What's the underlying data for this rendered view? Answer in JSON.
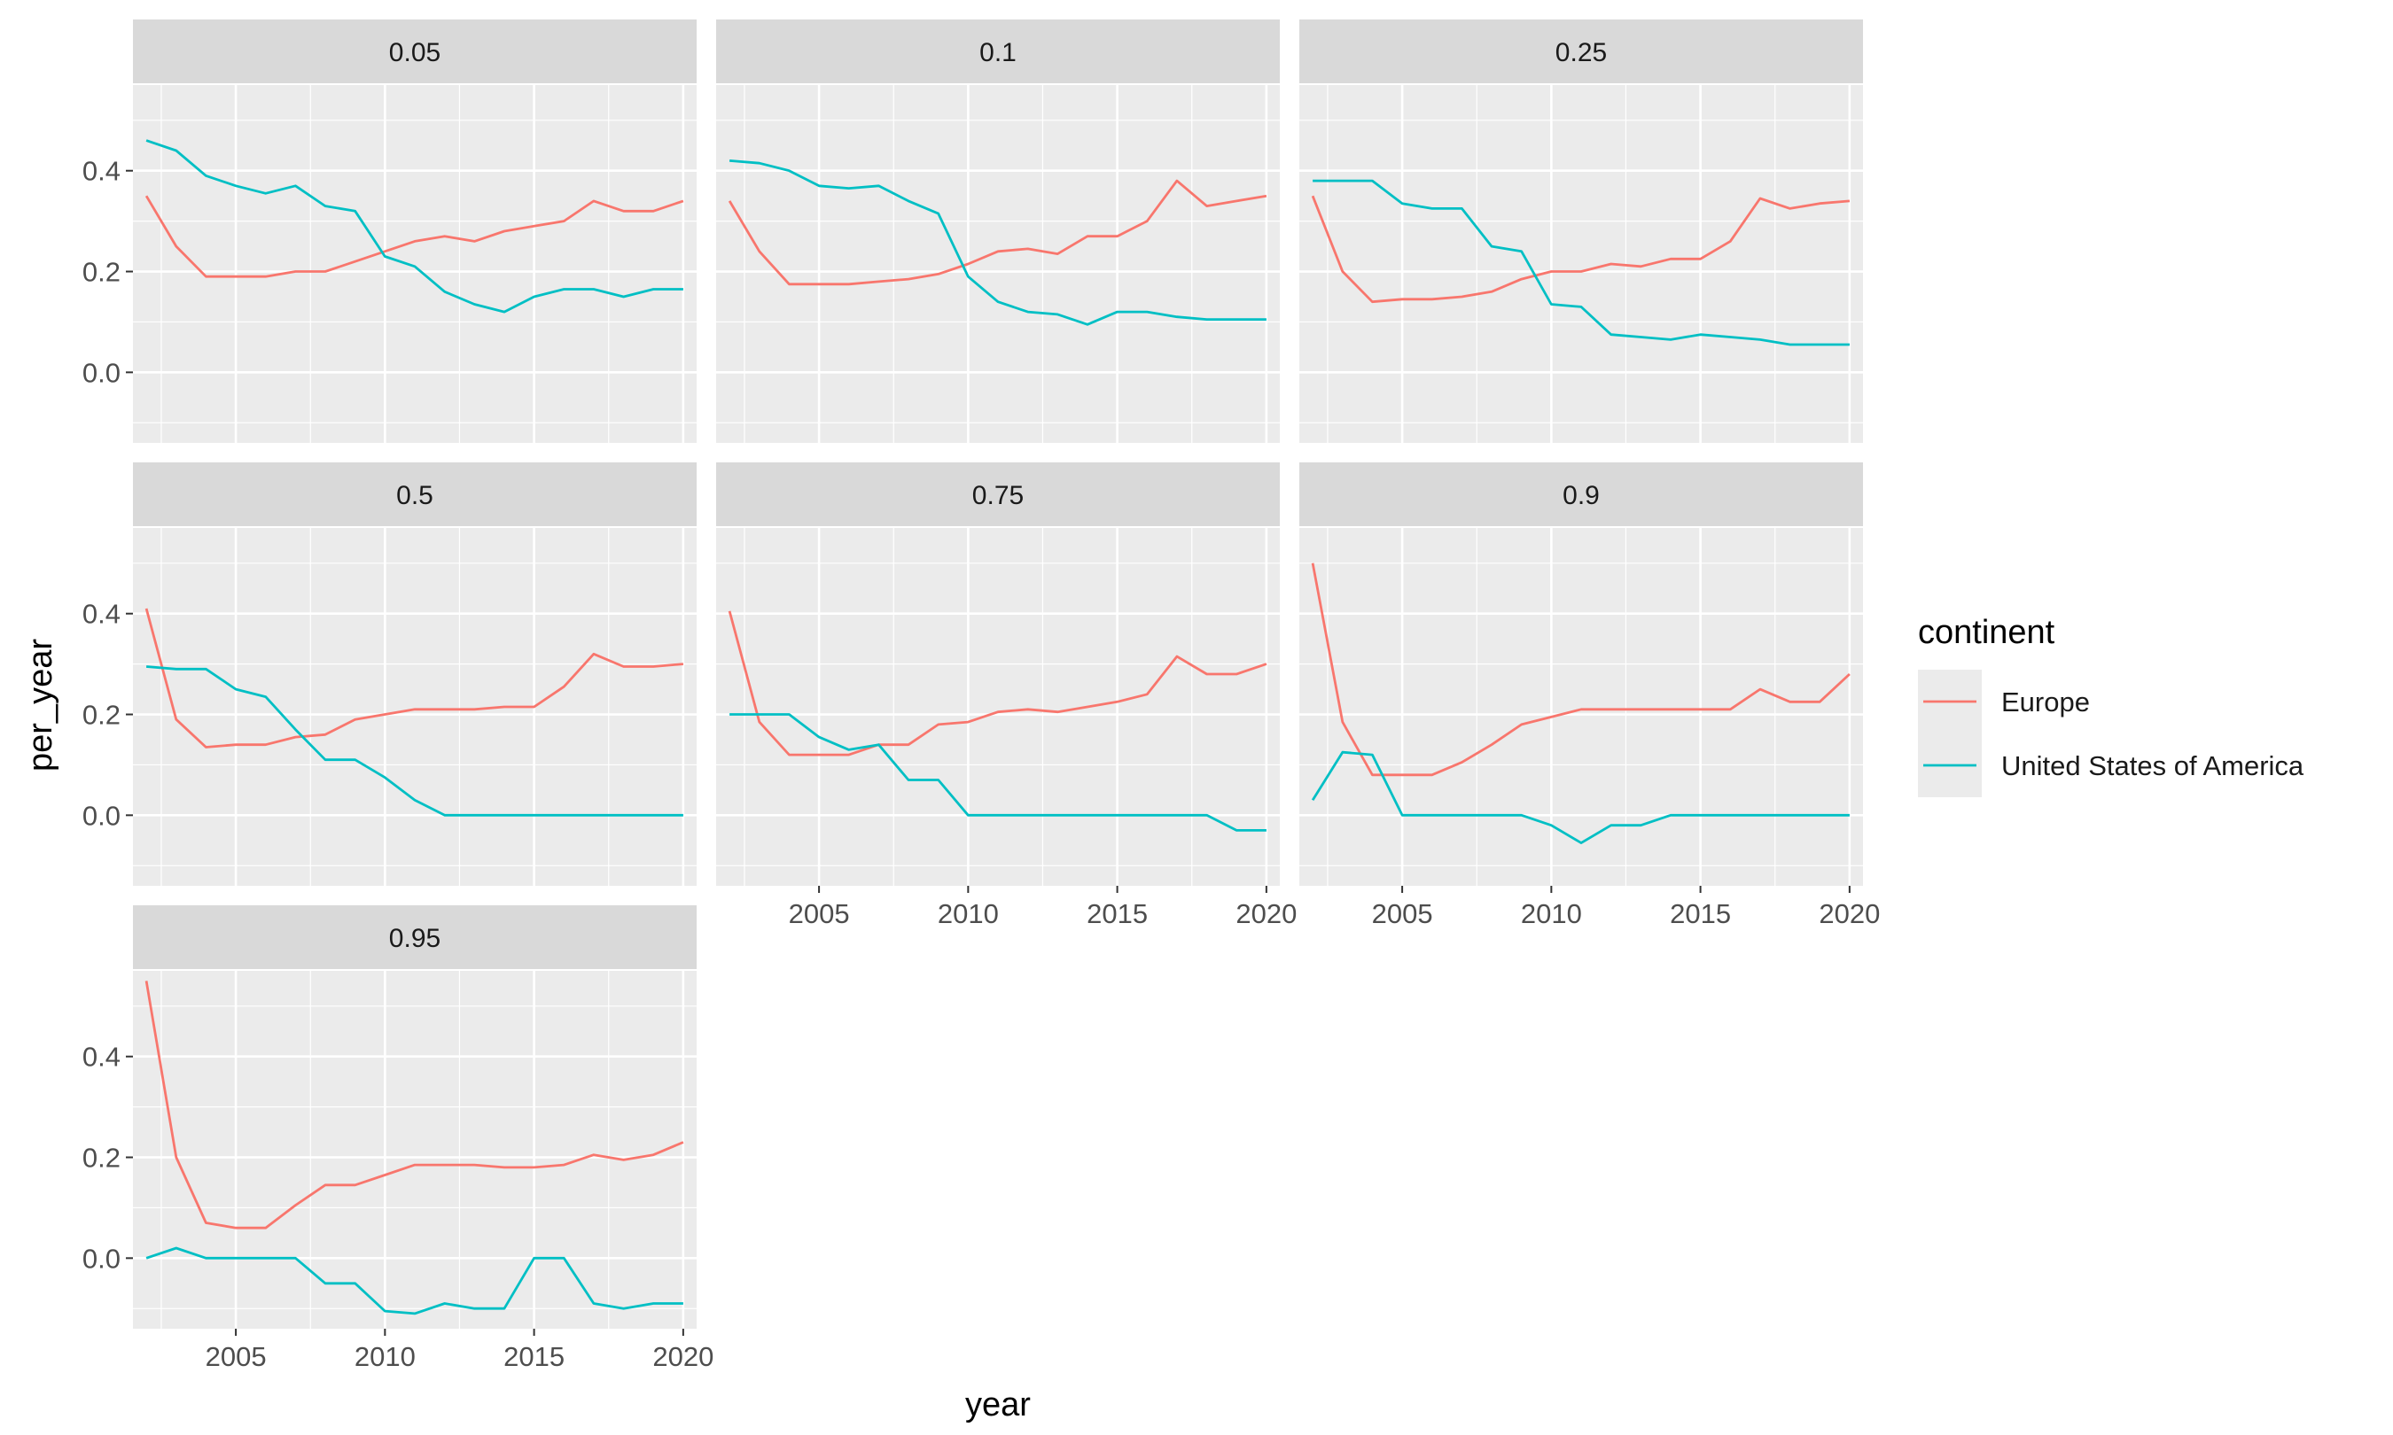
{
  "chart_data": {
    "type": "line",
    "facet_layout": "wrap, 3 columns",
    "xlabel": "year",
    "ylabel": "per_year",
    "xlim": [
      2001.55,
      2020.45
    ],
    "ylim": [
      -0.14,
      0.57
    ],
    "x_ticks": [
      2005,
      2010,
      2015,
      2020
    ],
    "y_ticks": [
      0.0,
      0.2,
      0.4
    ],
    "y_tick_labels": [
      "0.0",
      "0.2",
      "0.4"
    ],
    "grid": true,
    "legend": {
      "title": "continent",
      "placement": "right",
      "entries": [
        {
          "name": "Europe",
          "color": "#F8766D"
        },
        {
          "name": "United States of America",
          "color": "#00BFC4"
        }
      ]
    },
    "x": [
      2002,
      2003,
      2004,
      2005,
      2006,
      2007,
      2008,
      2009,
      2010,
      2011,
      2012,
      2013,
      2014,
      2015,
      2016,
      2017,
      2018,
      2019,
      2020
    ],
    "facets": [
      {
        "label": "0.05",
        "series": [
          {
            "name": "Europe",
            "values": [
              0.35,
              0.25,
              0.19,
              0.19,
              0.19,
              0.2,
              0.2,
              0.22,
              0.24,
              0.26,
              0.27,
              0.26,
              0.28,
              0.29,
              0.3,
              0.34,
              0.32,
              0.32,
              0.34
            ]
          },
          {
            "name": "United States of America",
            "values": [
              0.46,
              0.44,
              0.39,
              0.37,
              0.355,
              0.37,
              0.33,
              0.32,
              0.23,
              0.21,
              0.16,
              0.135,
              0.12,
              0.15,
              0.165,
              0.165,
              0.15,
              0.165,
              0.165
            ]
          }
        ]
      },
      {
        "label": "0.1",
        "series": [
          {
            "name": "Europe",
            "values": [
              0.34,
              0.24,
              0.175,
              0.175,
              0.175,
              0.18,
              0.185,
              0.195,
              0.215,
              0.24,
              0.245,
              0.235,
              0.27,
              0.27,
              0.3,
              0.38,
              0.33,
              0.34,
              0.35
            ]
          },
          {
            "name": "United States of America",
            "values": [
              0.42,
              0.415,
              0.4,
              0.37,
              0.365,
              0.37,
              0.34,
              0.315,
              0.19,
              0.14,
              0.12,
              0.115,
              0.095,
              0.12,
              0.12,
              0.11,
              0.105,
              0.105,
              0.105
            ]
          }
        ]
      },
      {
        "label": "0.25",
        "series": [
          {
            "name": "Europe",
            "values": [
              0.35,
              0.2,
              0.14,
              0.145,
              0.145,
              0.15,
              0.16,
              0.185,
              0.2,
              0.2,
              0.215,
              0.21,
              0.225,
              0.225,
              0.26,
              0.345,
              0.325,
              0.335,
              0.34
            ]
          },
          {
            "name": "United States of America",
            "values": [
              0.38,
              0.38,
              0.38,
              0.335,
              0.325,
              0.325,
              0.25,
              0.24,
              0.135,
              0.13,
              0.075,
              0.07,
              0.065,
              0.075,
              0.07,
              0.065,
              0.055,
              0.055,
              0.055
            ]
          }
        ]
      },
      {
        "label": "0.5",
        "series": [
          {
            "name": "Europe",
            "values": [
              0.41,
              0.19,
              0.135,
              0.14,
              0.14,
              0.155,
              0.16,
              0.19,
              0.2,
              0.21,
              0.21,
              0.21,
              0.215,
              0.215,
              0.255,
              0.32,
              0.295,
              0.295,
              0.3
            ]
          },
          {
            "name": "United States of America",
            "values": [
              0.295,
              0.29,
              0.29,
              0.25,
              0.235,
              0.17,
              0.11,
              0.11,
              0.075,
              0.03,
              0.0,
              0.0,
              0.0,
              0.0,
              0.0,
              0.0,
              0.0,
              0.0,
              0.0
            ]
          }
        ]
      },
      {
        "label": "0.75",
        "series": [
          {
            "name": "Europe",
            "values": [
              0.405,
              0.185,
              0.12,
              0.12,
              0.12,
              0.14,
              0.14,
              0.18,
              0.185,
              0.205,
              0.21,
              0.205,
              0.215,
              0.225,
              0.24,
              0.315,
              0.28,
              0.28,
              0.3
            ]
          },
          {
            "name": "United States of America",
            "values": [
              0.2,
              0.2,
              0.2,
              0.155,
              0.13,
              0.14,
              0.07,
              0.07,
              0.0,
              0.0,
              0.0,
              0.0,
              0.0,
              0.0,
              0.0,
              0.0,
              0.0,
              -0.03,
              -0.03
            ]
          }
        ]
      },
      {
        "label": "0.9",
        "series": [
          {
            "name": "Europe",
            "values": [
              0.5,
              0.185,
              0.08,
              0.08,
              0.08,
              0.105,
              0.14,
              0.18,
              0.195,
              0.21,
              0.21,
              0.21,
              0.21,
              0.21,
              0.21,
              0.25,
              0.225,
              0.225,
              0.28
            ]
          },
          {
            "name": "United States of America",
            "values": [
              0.03,
              0.125,
              0.12,
              0.0,
              0.0,
              0.0,
              0.0,
              0.0,
              -0.02,
              -0.055,
              -0.02,
              -0.02,
              0.0,
              0.0,
              0.0,
              0.0,
              0.0,
              0.0,
              0.0
            ]
          }
        ]
      },
      {
        "label": "0.95",
        "series": [
          {
            "name": "Europe",
            "values": [
              0.55,
              0.2,
              0.07,
              0.06,
              0.06,
              0.105,
              0.145,
              0.145,
              0.165,
              0.185,
              0.185,
              0.185,
              0.18,
              0.18,
              0.185,
              0.205,
              0.195,
              0.205,
              0.23
            ]
          },
          {
            "name": "United States of America",
            "values": [
              0.0,
              0.02,
              0.0,
              0.0,
              0.0,
              0.0,
              -0.05,
              -0.05,
              -0.105,
              -0.11,
              -0.09,
              -0.1,
              -0.1,
              0.0,
              0.0,
              -0.09,
              -0.1,
              -0.09,
              -0.09
            ]
          }
        ]
      }
    ]
  }
}
